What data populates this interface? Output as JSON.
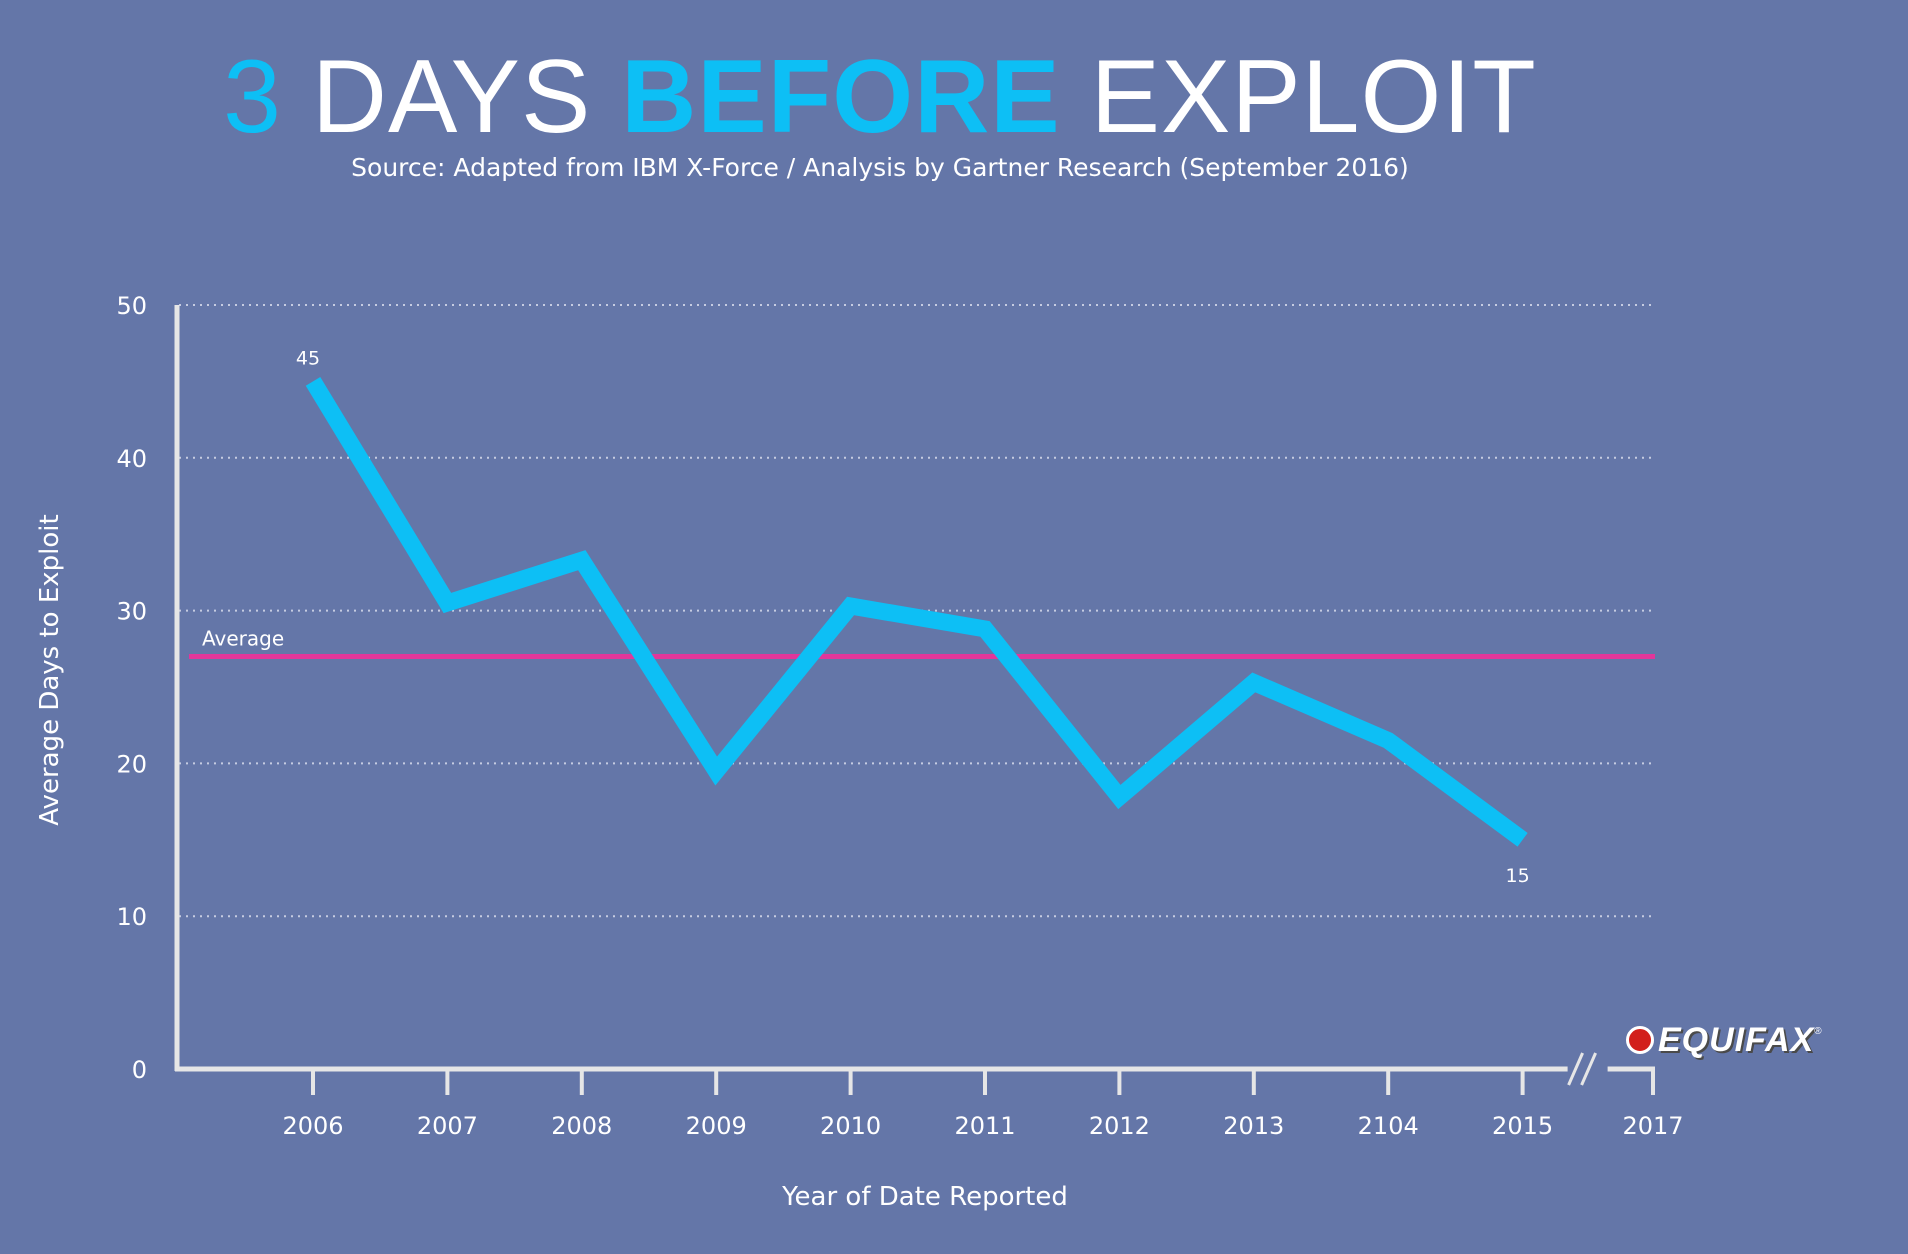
{
  "header": {
    "title_num": "3",
    "title_part1": "DAYS",
    "title_accent": "BEFORE",
    "title_part2": "EXPLOIT",
    "subtitle": "Source: Adapted from IBM X-Force / Analysis by Gartner Research (September 2016)"
  },
  "logo": {
    "text": "EQUIFAX",
    "reg": "®"
  },
  "colors": {
    "background": "#6476a8",
    "line": "#0dbff5",
    "average": "#e2369a",
    "axis": "#e6e6e6"
  },
  "chart_data": {
    "type": "line",
    "title": "3 DAYS BEFORE EXPLOIT",
    "xlabel": "Year of Date Reported",
    "ylabel": "Average Days to Exploit",
    "ylim": [
      0,
      50
    ],
    "yticks": [
      "0",
      "10",
      "20",
      "30",
      "40",
      "50"
    ],
    "grid": true,
    "categories": [
      "2006",
      "2007",
      "2008",
      "2009",
      "2010",
      "2011",
      "2012",
      "2013",
      "2104",
      "2015",
      "2017"
    ],
    "series": [
      {
        "name": "Average Days to Exploit",
        "x": [
          "2006",
          "2007",
          "2008",
          "2009",
          "2010",
          "2011",
          "2012",
          "2013",
          "2104",
          "2015"
        ],
        "values": [
          45,
          30.5,
          33.3,
          19.5,
          30.3,
          28.8,
          17.8,
          25.3,
          21.5,
          15
        ]
      }
    ],
    "data_labels": [
      {
        "category": "2006",
        "value": 45,
        "text": "45"
      },
      {
        "category": "2015",
        "value": 15,
        "text": "15"
      }
    ],
    "reference_line": {
      "label": "Average",
      "value": 27
    },
    "axis_break_between": [
      "2015",
      "2017"
    ]
  }
}
